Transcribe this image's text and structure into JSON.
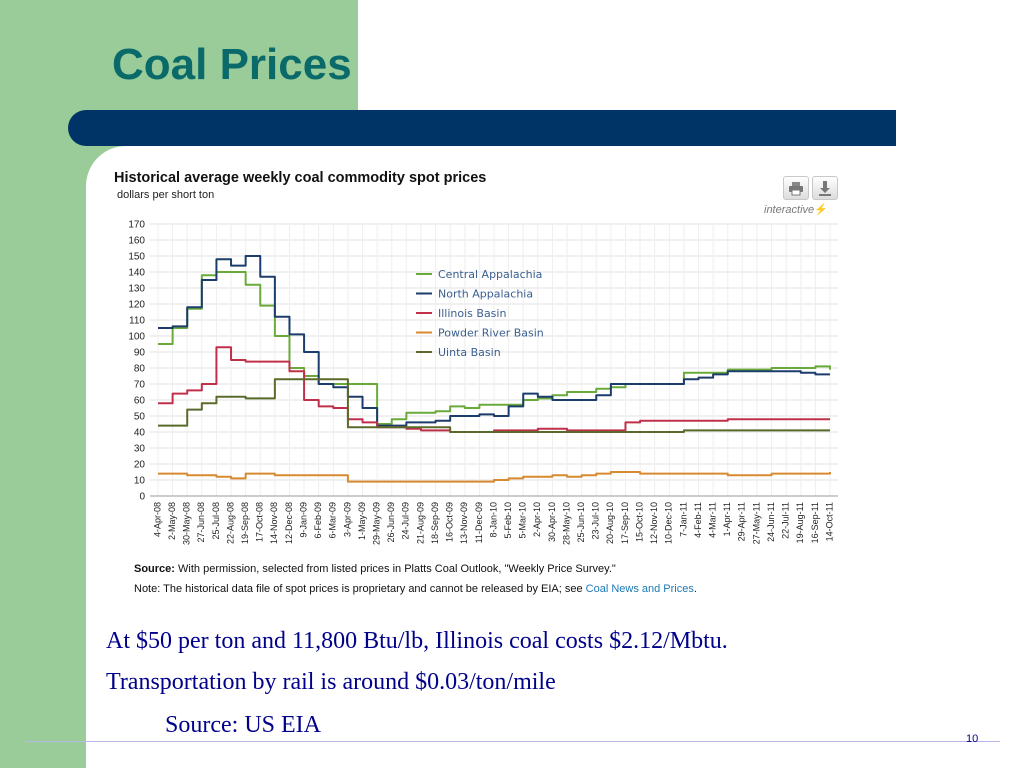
{
  "slide": {
    "title": "Coal Prices",
    "body_lines": [
      "At $50 per ton and 11,800 Btu/lb, Illinois coal costs $2.12/Mbtu.",
      "Transportation by rail is around $0.03/ton/mile",
      "Source: US EIA"
    ],
    "page_number": "10",
    "colors": {
      "title": "#0a6a6a",
      "band": "#99cc99",
      "bar": "#003366",
      "body_text": "#00008b"
    }
  },
  "chart_header": {
    "title": "Historical average weekly coal commodity spot prices",
    "subtitle": "dollars per short ton",
    "interactive_label": "interactive",
    "print_icon": "printer-icon",
    "download_icon": "download-icon"
  },
  "source": {
    "label": "Source:",
    "text": " With permission, selected from listed prices in Platts Coal Outlook, \"Weekly Price Survey.\"",
    "note_text": "Note: The historical data file of spot prices is proprietary and cannot be released by EIA; see ",
    "note_link": "Coal News and Prices",
    "note_end": "."
  },
  "chart_data": {
    "type": "line",
    "title": "Historical average weekly coal commodity spot prices",
    "ylabel": "dollars per short ton",
    "ylim": [
      0,
      170
    ],
    "y_ticks": [
      0,
      10,
      20,
      30,
      40,
      50,
      60,
      70,
      80,
      90,
      100,
      110,
      120,
      130,
      140,
      150,
      160,
      170
    ],
    "grid": true,
    "legend_position": "center",
    "x_tick_labels": [
      "4-Apr-08",
      "2-May-08",
      "30-May-08",
      "27-Jun-08",
      "25-Jul-08",
      "22-Aug-08",
      "19-Sep-08",
      "17-Oct-08",
      "14-Nov-08",
      "12-Dec-08",
      "9-Jan-09",
      "6-Feb-09",
      "6-Mar-09",
      "3-Apr-09",
      "1-May-09",
      "29-May-09",
      "26-Jun-09",
      "24-Jul-09",
      "21-Aug-09",
      "18-Sep-09",
      "16-Oct-09",
      "13-Nov-09",
      "11-Dec-09",
      "8-Jan-10",
      "5-Feb-10",
      "5-Mar-10",
      "2-Apr-10",
      "30-Apr-10",
      "28-May-10",
      "25-Jun-10",
      "23-Jul-10",
      "20-Aug-10",
      "17-Sep-10",
      "15-Oct-10",
      "12-Nov-10",
      "10-Dec-10",
      "7-Jan-11",
      "4-Feb-11",
      "4-Mar-11",
      "1-Apr-11",
      "29-Apr-11",
      "27-May-11",
      "24-Jun-11",
      "22-Jul-11",
      "19-Aug-11",
      "16-Sep-11",
      "14-Oct-11"
    ],
    "series": [
      {
        "name": "Central Appalachia",
        "color": "#6aaa3a",
        "values": [
          95,
          105,
          117,
          138,
          140,
          140,
          132,
          119,
          100,
          80,
          75,
          70,
          70,
          70,
          70,
          45,
          48,
          52,
          52,
          53,
          56,
          55,
          57,
          57,
          57,
          60,
          61,
          63,
          65,
          65,
          67,
          68,
          70,
          70,
          70,
          70,
          77,
          77,
          77,
          79,
          79,
          79,
          80,
          80,
          80,
          81,
          79
        ]
      },
      {
        "name": "North Appalachia",
        "color": "#1c3c6c",
        "values": [
          105,
          106,
          118,
          135,
          148,
          144,
          150,
          137,
          112,
          101,
          90,
          70,
          68,
          62,
          55,
          44,
          44,
          46,
          46,
          47,
          50,
          50,
          51,
          50,
          56,
          64,
          62,
          60,
          60,
          60,
          63,
          70,
          70,
          70,
          70,
          70,
          73,
          74,
          76,
          78,
          78,
          78,
          78,
          78,
          77,
          76,
          76
        ]
      },
      {
        "name": "Illinois Basin",
        "color": "#c0304a",
        "values": [
          58,
          64,
          66,
          70,
          93,
          85,
          84,
          84,
          84,
          78,
          60,
          56,
          55,
          48,
          46,
          43,
          43,
          42,
          41,
          41,
          40,
          40,
          40,
          41,
          41,
          41,
          42,
          42,
          41,
          41,
          41,
          41,
          46,
          47,
          47,
          47,
          47,
          47,
          47,
          48,
          48,
          48,
          48,
          48,
          48,
          48,
          48
        ]
      },
      {
        "name": "Powder River Basin",
        "color": "#d88a30",
        "values": [
          14,
          14,
          13,
          13,
          12,
          11,
          14,
          14,
          13,
          13,
          13,
          13,
          13,
          9,
          9,
          9,
          9,
          9,
          9,
          9,
          9,
          9,
          9,
          10,
          11,
          12,
          12,
          13,
          12,
          13,
          14,
          15,
          15,
          14,
          14,
          14,
          14,
          14,
          14,
          13,
          13,
          13,
          14,
          14,
          14,
          14,
          15
        ]
      },
      {
        "name": "Uinta Basin",
        "color": "#5a6a2a",
        "values": [
          44,
          44,
          54,
          58,
          62,
          62,
          61,
          61,
          73,
          73,
          73,
          73,
          73,
          43,
          43,
          43,
          43,
          43,
          43,
          43,
          40,
          40,
          40,
          40,
          40,
          40,
          40,
          40,
          40,
          40,
          40,
          40,
          40,
          40,
          40,
          40,
          41,
          41,
          41,
          41,
          41,
          41,
          41,
          41,
          41,
          41,
          41
        ]
      }
    ]
  }
}
